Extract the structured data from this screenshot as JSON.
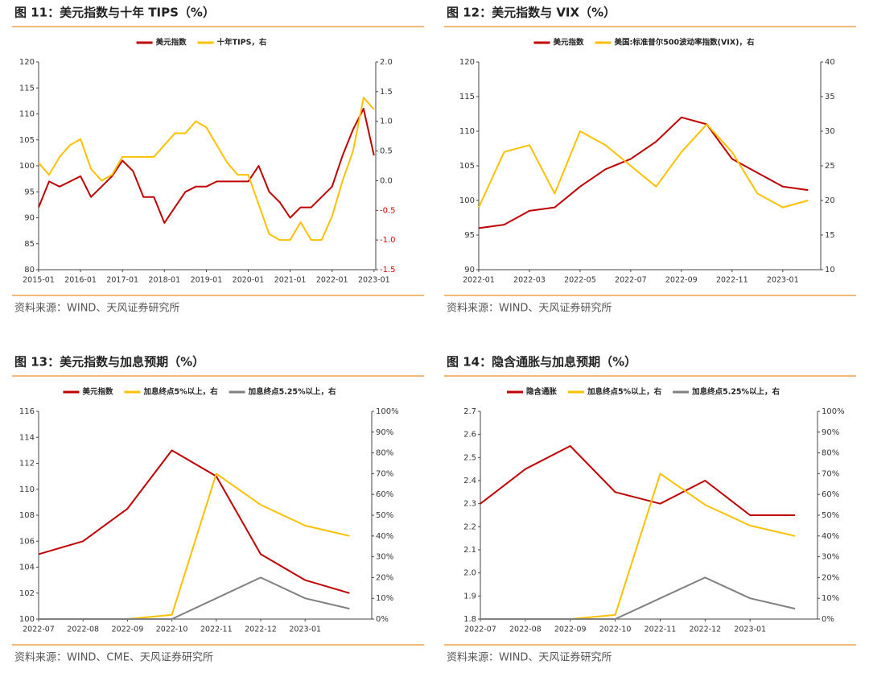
{
  "chart_data": [
    {
      "type": "line",
      "title": "图 11：美元指数与十年 TIPS（%）",
      "source": "资料来源：WIND、天风证券研究所",
      "x": [
        "2015-01",
        "2015-04",
        "2015-07",
        "2015-10",
        "2016-01",
        "2016-04",
        "2016-07",
        "2016-10",
        "2017-01",
        "2017-04",
        "2017-07",
        "2017-10",
        "2018-01",
        "2018-04",
        "2018-07",
        "2018-10",
        "2019-01",
        "2019-04",
        "2019-07",
        "2019-10",
        "2020-01",
        "2020-04",
        "2020-07",
        "2020-10",
        "2021-01",
        "2021-04",
        "2021-07",
        "2021-10",
        "2022-01",
        "2022-04",
        "2022-07",
        "2022-10",
        "2023-01"
      ],
      "xticks": [
        "2015-01",
        "2016-01",
        "2017-01",
        "2018-01",
        "2019-01",
        "2020-01",
        "2021-01",
        "2022-01",
        "2023-01"
      ],
      "ylim": [
        80,
        120
      ],
      "yticks": [
        80,
        85,
        90,
        95,
        100,
        105,
        110,
        115,
        120
      ],
      "y2lim": [
        -1.5,
        2.0
      ],
      "y2ticks": [
        -1.5,
        {
          "value": -1.0,
          "label": "-1.0"
        },
        -0.5,
        {
          "value": 0,
          "label": "0.0"
        },
        0.5,
        {
          "value": 1.0,
          "label": "1.0"
        },
        1.5,
        {
          "value": 2.0,
          "label": "2.0"
        }
      ],
      "series": [
        {
          "name": "美元指数",
          "color": "#c00000",
          "values": [
            92,
            97,
            96,
            97,
            98,
            94,
            96,
            98,
            101,
            99,
            94,
            94,
            89,
            92,
            95,
            96,
            96,
            97,
            97,
            97,
            97,
            100,
            95,
            93,
            90,
            92,
            92,
            94,
            96,
            102,
            107,
            111,
            102
          ]
        },
        {
          "name": "十年TIPS，右",
          "color": "#ffc000",
          "axis": "y2",
          "values": [
            0.3,
            0.1,
            0.4,
            0.6,
            0.7,
            0.2,
            0.0,
            0.1,
            0.4,
            0.4,
            0.4,
            0.4,
            0.6,
            0.8,
            0.8,
            1.0,
            0.9,
            0.6,
            0.3,
            0.1,
            0.1,
            -0.4,
            -0.9,
            -1.0,
            -1.0,
            -0.7,
            -1.0,
            -1.0,
            -0.6,
            0.0,
            0.5,
            1.4,
            1.2
          ]
        }
      ]
    },
    {
      "type": "line",
      "title": "图 12：美元指数与 VIX（%）",
      "source": "资料来源：WIND、天风证券研究所",
      "x": [
        "2022-01",
        "2022-02",
        "2022-03",
        "2022-04",
        "2022-05",
        "2022-06",
        "2022-07",
        "2022-08",
        "2022-09",
        "2022-10",
        "2022-11",
        "2022-12",
        "2023-01",
        "2023-02"
      ],
      "xticks": [
        "2022-01",
        "2022-03",
        "2022-05",
        "2022-07",
        "2022-09",
        "2022-11",
        "2023-01"
      ],
      "ylim": [
        90,
        120
      ],
      "yticks": [
        90,
        95,
        100,
        105,
        110,
        115,
        120
      ],
      "y2lim": [
        10,
        40
      ],
      "y2ticks": [
        10,
        15,
        20,
        25,
        30,
        35,
        40
      ],
      "series": [
        {
          "name": "美元指数",
          "color": "#c00000",
          "values": [
            96,
            96.5,
            98.5,
            99,
            102,
            104.5,
            106,
            108.5,
            112,
            111,
            106,
            104,
            102,
            101.5
          ]
        },
        {
          "name": "美国:标准普尔500波动率指数(VIX)，右",
          "color": "#ffc000",
          "axis": "y2",
          "values": [
            19,
            27,
            28,
            21,
            30,
            28,
            25,
            22,
            27,
            31,
            27,
            21,
            19,
            20
          ]
        }
      ]
    },
    {
      "type": "line",
      "title": "图 13：美元指数与加息预期（%）",
      "source": "资料来源：WIND、CME、天风证券研究所",
      "x": [
        "2022-07",
        "2022-08",
        "2022-09",
        "2022-10",
        "2022-11",
        "2022-12",
        "2023-01",
        "2023-02"
      ],
      "xticks": [
        "2022-07",
        "2022-08",
        "2022-09",
        "2022-10",
        "2022-11",
        "2022-12",
        "2023-01"
      ],
      "ylim": [
        100,
        116
      ],
      "yticks": [
        100,
        102,
        104,
        106,
        108,
        110,
        112,
        114,
        116
      ],
      "y2lim": [
        0,
        100
      ],
      "y2ticks": [
        {
          "value": 0,
          "label": "0%"
        },
        {
          "value": 10,
          "label": "10%"
        },
        {
          "value": 20,
          "label": "20%"
        },
        {
          "value": 30,
          "label": "30%"
        },
        {
          "value": 40,
          "label": "40%"
        },
        {
          "value": 50,
          "label": "50%"
        },
        {
          "value": 60,
          "label": "60%"
        },
        {
          "value": 70,
          "label": "70%"
        },
        {
          "value": 80,
          "label": "80%"
        },
        {
          "value": 90,
          "label": "90%"
        },
        {
          "value": 100,
          "label": "100%"
        }
      ],
      "series": [
        {
          "name": "美元指数",
          "color": "#c00000",
          "values": [
            105,
            106,
            108.5,
            113,
            111,
            105,
            103,
            102
          ]
        },
        {
          "name": "加息终点5%以上，右",
          "color": "#ffc000",
          "axis": "y2",
          "values": [
            0,
            0,
            0,
            2,
            70,
            55,
            45,
            40
          ]
        },
        {
          "name": "加息终点5.25%以上，右",
          "color": "#808080",
          "axis": "y2",
          "values": [
            0,
            0,
            0,
            0,
            10,
            20,
            10,
            5
          ]
        }
      ]
    },
    {
      "type": "line",
      "title": "图 14：隐含通胀与加息预期（%）",
      "source": "资料来源：WIND、天风证券研究所",
      "x": [
        "2022-07",
        "2022-08",
        "2022-09",
        "2022-10",
        "2022-11",
        "2022-12",
        "2023-01",
        "2023-02"
      ],
      "xticks": [
        "2022-07",
        "2022-08",
        "2022-09",
        "2022-10",
        "2022-11",
        "2022-12",
        "2023-01"
      ],
      "ylim": [
        1.8,
        2.7
      ],
      "yticks": [
        1.8,
        1.9,
        {
          "value": 2.0,
          "label": "2.0"
        },
        2.1,
        2.2,
        2.3,
        2.4,
        2.5,
        2.6,
        2.7
      ],
      "y2lim": [
        0,
        100
      ],
      "y2ticks": [
        {
          "value": 0,
          "label": "0%"
        },
        {
          "value": 10,
          "label": "10%"
        },
        {
          "value": 20,
          "label": "20%"
        },
        {
          "value": 30,
          "label": "30%"
        },
        {
          "value": 40,
          "label": "40%"
        },
        {
          "value": 50,
          "label": "50%"
        },
        {
          "value": 60,
          "label": "60%"
        },
        {
          "value": 70,
          "label": "70%"
        },
        {
          "value": 80,
          "label": "80%"
        },
        {
          "value": 90,
          "label": "90%"
        },
        {
          "value": 100,
          "label": "100%"
        }
      ],
      "series": [
        {
          "name": "隐含通胀",
          "color": "#c00000",
          "values": [
            2.3,
            2.45,
            2.55,
            2.35,
            2.3,
            2.4,
            2.25,
            2.25
          ]
        },
        {
          "name": "加息终点5%以上，右",
          "color": "#ffc000",
          "axis": "y2",
          "values": [
            0,
            0,
            0,
            2,
            70,
            55,
            45,
            40
          ]
        },
        {
          "name": "加息终点5.25%以上，右",
          "color": "#808080",
          "axis": "y2",
          "values": [
            0,
            0,
            0,
            0,
            10,
            20,
            10,
            5
          ]
        }
      ]
    }
  ]
}
